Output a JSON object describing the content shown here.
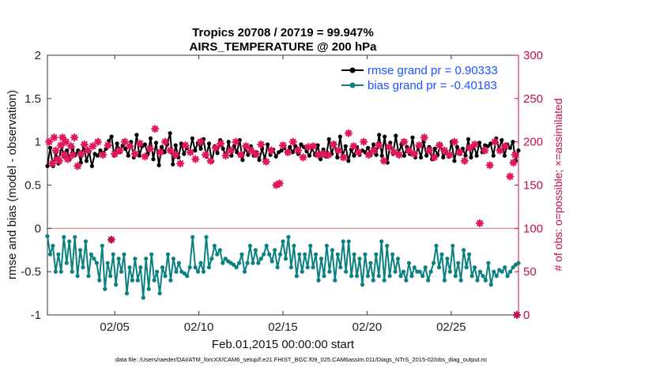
{
  "chart_data": {
    "type": "line",
    "title": "Tropics 20708 / 20719 = 99.947%",
    "subtitle": "AIRS_TEMPERATURE @ 200 hPa",
    "xlabel": "Feb.01,2015 00:00:00 start",
    "ylabel": "rmse and bias (model - observation)",
    "ylabel_right": "# of obs: o=possible; ×=assimilated",
    "xlim": [
      1.0,
      29.0
    ],
    "ylim": [
      -1,
      2
    ],
    "ylim_right": [
      0,
      300
    ],
    "x_ticks": [
      5,
      10,
      15,
      20,
      25
    ],
    "x_tick_labels": [
      "02/05",
      "02/10",
      "02/15",
      "02/20",
      "02/25"
    ],
    "y_ticks": [
      -1,
      -0.5,
      0,
      0.5,
      1,
      1.5,
      2
    ],
    "y_tick_labels": [
      "-1",
      "-0.5",
      "0",
      "0.5",
      "1",
      "1.5",
      "2"
    ],
    "y_right_ticks": [
      0,
      50,
      100,
      150,
      200,
      250,
      300
    ],
    "y_right_tick_labels": [
      "0",
      "50",
      "100",
      "150",
      "200",
      "250",
      "300"
    ],
    "zero_line": 0,
    "legend_position": "top-right",
    "series": [
      {
        "name": "rmse grand pr = 0.90333",
        "color": "#000000",
        "marker": "circle",
        "axis": "left",
        "values": [
          0.72,
          0.93,
          0.72,
          0.88,
          0.75,
          0.95,
          0.83,
          0.9,
          0.8,
          0.92,
          0.85,
          0.9,
          0.76,
          0.97,
          0.78,
          0.88,
          0.72,
          0.86,
          0.84,
          0.9,
          0.87,
          0.92,
          1.01,
          1.06,
          0.84,
          0.98,
          0.88,
          0.96,
          0.92,
          0.84,
          1.0,
          0.82,
          1.08,
          0.84,
          0.95,
          0.97,
          0.86,
          1.04,
          0.8,
          0.99,
          0.73,
          0.94,
          0.88,
          0.97,
          1.1,
          0.74,
          0.96,
          0.82,
          0.98,
          0.86,
          0.93,
          0.88,
          1.04,
          0.9,
          0.99,
          0.92,
          1.03,
          0.83,
          0.98,
          0.77,
          0.95,
          0.87,
          1.02,
          0.92,
          0.84,
          1.0,
          0.84,
          0.95,
          0.88,
          1.02,
          0.79,
          0.93,
          0.85,
          0.95,
          0.84,
          0.88,
          0.79,
          0.92,
          0.8,
          0.97,
          0.85,
          0.91,
          0.83,
          0.88,
          0.9,
          0.93,
          0.87,
          0.94,
          0.88,
          0.95,
          0.86,
          0.97,
          0.94,
          0.89,
          0.84,
          0.92,
          0.85,
          0.96,
          0.8,
          0.91,
          0.83,
          1.03,
          0.86,
          0.98,
          0.82,
          1.06,
          0.84,
          0.95,
          0.78,
          0.91,
          0.84,
          0.94,
          0.85,
          0.9,
          0.88,
          0.93,
          0.85,
          0.97,
          0.85,
          1.08,
          0.84,
          1.06,
          0.76,
          0.99,
          0.86,
          1.07,
          0.86,
          0.97,
          0.84,
          0.94,
          0.86,
          1.05,
          0.82,
          0.94,
          0.82,
          1.0,
          0.84,
          0.94,
          0.8,
          0.92,
          0.85,
          0.97,
          0.82,
          0.89,
          0.83,
          1.0,
          0.78,
          0.94,
          0.86,
          0.92,
          0.84,
          1.03,
          0.82,
          0.96,
          0.84,
          0.99,
          0.88,
          0.96,
          0.95,
          0.98,
          0.84,
          1.04,
          0.92,
          1.02,
          0.84,
          0.97,
          0.93,
          1.0,
          0.78,
          0.9
        ]
      },
      {
        "name": "bias grand pr = -0.40183",
        "color": "#0a8080",
        "marker": "circle",
        "axis": "left",
        "values": [
          -0.09,
          -0.3,
          -0.2,
          -0.5,
          -0.3,
          -0.5,
          -0.1,
          -0.4,
          -0.15,
          -0.5,
          -0.1,
          -0.55,
          -0.25,
          -0.45,
          -0.15,
          -0.55,
          -0.3,
          -0.35,
          -0.4,
          -0.6,
          -0.2,
          -0.7,
          -0.4,
          -0.55,
          -0.3,
          -0.65,
          -0.35,
          -0.5,
          -0.3,
          -0.75,
          -0.45,
          -0.6,
          -0.35,
          -0.6,
          -0.45,
          -0.8,
          -0.35,
          -0.7,
          -0.3,
          -0.6,
          -0.5,
          -0.75,
          -0.45,
          -0.55,
          -0.3,
          -0.6,
          -0.35,
          -0.5,
          -0.4,
          -0.5,
          -0.52,
          -0.55,
          -0.45,
          -0.1,
          -0.45,
          -0.5,
          -0.4,
          -0.5,
          -0.1,
          -0.45,
          -0.35,
          -0.2,
          -0.3,
          -0.25,
          -0.4,
          -0.35,
          -0.38,
          -0.4,
          -0.42,
          -0.45,
          -0.4,
          -0.3,
          -0.5,
          -0.4,
          -0.2,
          -0.4,
          -0.25,
          -0.4,
          -0.35,
          -0.3,
          -0.2,
          -0.3,
          -0.38,
          -0.25,
          -0.45,
          -0.3,
          -0.15,
          -0.35,
          -0.1,
          -0.45,
          -0.2,
          -0.55,
          -0.3,
          -0.5,
          -0.3,
          -0.45,
          -0.2,
          -0.45,
          -0.3,
          -0.6,
          -0.35,
          -0.55,
          -0.2,
          -0.5,
          -0.25,
          -0.6,
          -0.3,
          -0.45,
          -0.15,
          -0.5,
          -0.15,
          -0.55,
          -0.3,
          -0.55,
          -0.35,
          -0.65,
          -0.3,
          -0.55,
          -0.4,
          -0.6,
          -0.3,
          -0.55,
          -0.15,
          -0.6,
          -0.2,
          -0.55,
          -0.3,
          -0.5,
          -0.35,
          -0.55,
          -0.5,
          -0.6,
          -0.4,
          -0.55,
          -0.45,
          -0.5,
          -0.5,
          -0.55,
          -0.45,
          -0.6,
          -0.5,
          -0.4,
          -0.2,
          -0.45,
          -0.3,
          -0.6,
          -0.35,
          -0.5,
          -0.2,
          -0.55,
          -0.4,
          -0.6,
          -0.25,
          -0.45,
          -0.3,
          -0.55,
          -0.45,
          -0.6,
          -0.5,
          -0.55,
          -0.6,
          -0.4,
          -0.65,
          -0.5,
          -0.55,
          -0.48,
          -0.5,
          -0.45,
          -0.55,
          -0.5,
          -0.45,
          -0.42,
          -0.4
        ]
      }
    ],
    "obs_possible": {
      "name": "obs possible",
      "color": "#c0104a",
      "marker": "circle",
      "axis": "right",
      "x": [
        4.8,
        28.9
      ],
      "values": [
        87,
        0
      ]
    },
    "obs_assimilated": {
      "name": "obs assimilated",
      "color": "#e0185a",
      "marker": "star",
      "axis": "right",
      "x": [
        1.1,
        1.3,
        1.4,
        1.5,
        1.6,
        1.7,
        1.8,
        1.9,
        2.0,
        2.1,
        2.2,
        2.4,
        2.5,
        2.6,
        2.8,
        3.0,
        3.2,
        3.4,
        3.7,
        4.0,
        4.3,
        4.6,
        5.0,
        5.3,
        5.6,
        5.9,
        6.2,
        6.5,
        6.8,
        7.1,
        7.4,
        7.7,
        8.0,
        8.3,
        8.6,
        8.9,
        9.2,
        9.5,
        9.8,
        10.1,
        10.4,
        10.7,
        11.0,
        11.3,
        11.6,
        11.9,
        12.2,
        12.5,
        12.8,
        13.1,
        13.4,
        13.7,
        14.0,
        14.3,
        14.6,
        14.8,
        15.0,
        15.3,
        15.6,
        15.9,
        16.2,
        16.5,
        16.8,
        17.1,
        17.4,
        17.7,
        18.0,
        18.3,
        18.6,
        18.9,
        19.2,
        19.5,
        19.8,
        20.1,
        20.4,
        20.7,
        21.0,
        21.3,
        21.6,
        21.9,
        22.2,
        22.5,
        22.8,
        23.1,
        23.4,
        23.7,
        24.0,
        24.3,
        24.6,
        24.9,
        25.2,
        25.5,
        25.8,
        26.1,
        26.4,
        26.7,
        27.0,
        27.3,
        27.6,
        27.9,
        28.2,
        28.5,
        28.7,
        28.8
      ],
      "values": [
        200,
        175,
        205,
        190,
        180,
        178,
        196,
        205,
        185,
        200,
        180,
        195,
        185,
        205,
        172,
        186,
        197,
        190,
        195,
        200,
        185,
        196,
        186,
        190,
        200,
        195,
        186,
        198,
        183,
        192,
        215,
        188,
        200,
        190,
        185,
        175,
        196,
        188,
        180,
        200,
        185,
        178,
        193,
        198,
        184,
        190,
        200,
        185,
        195,
        190,
        186,
        197,
        177,
        190,
        150,
        152,
        196,
        188,
        200,
        190,
        182,
        194,
        195,
        185,
        186,
        185,
        197,
        190,
        182,
        210,
        195,
        188,
        200,
        185,
        190,
        196,
        178,
        194,
        188,
        185,
        200,
        190,
        186,
        196,
        205,
        190,
        182,
        196,
        190,
        185,
        200,
        188,
        178,
        193,
        197,
        106,
        190,
        173,
        200,
        190,
        195,
        160,
        176,
        185
      ]
    }
  },
  "footer": {
    "data_file": "data file: /Users/raeder/DAI/ATM_forcXX/CAM6_setup/f.e21.FHIST_BGC.f09_025.CAM6assim.011/Diags_NTrS_2015-02/obs_diag_output.nc"
  }
}
